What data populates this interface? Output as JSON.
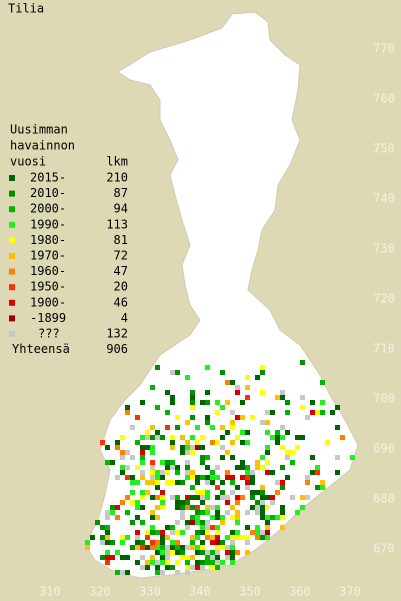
{
  "title": "Tilia",
  "legend": {
    "header": [
      "Uusimman",
      "havainnon",
      "vuosi"
    ],
    "count_header": "lkm",
    "items": [
      {
        "label": "2015-",
        "count": 210,
        "color": "#006400"
      },
      {
        "label": "2010-",
        "count": 87,
        "color": "#009000"
      },
      {
        "label": "2000-",
        "count": 94,
        "color": "#00b800"
      },
      {
        "label": "1990-",
        "count": 113,
        "color": "#22ee22"
      },
      {
        "label": "1980-",
        "count": 81,
        "color": "#ffff00"
      },
      {
        "label": "1970-",
        "count": 72,
        "color": "#ffc000"
      },
      {
        "label": "1960-",
        "count": 47,
        "color": "#ff8000"
      },
      {
        "label": "1950-",
        "count": 20,
        "color": "#ff3000"
      },
      {
        "label": "1900-",
        "count": 46,
        "color": "#d80000"
      },
      {
        "label": "-1899",
        "count": 4,
        "color": "#a00000"
      },
      {
        "label": "???",
        "count": 132,
        "color": "#c8c8c8"
      }
    ],
    "total_label": "Yhteensä",
    "total": 906
  },
  "x_labels": [
    310,
    320,
    330,
    340,
    350,
    360,
    370
  ],
  "y_labels": [
    670,
    680,
    690,
    700,
    710,
    720,
    730,
    740,
    750,
    760,
    770
  ]
}
